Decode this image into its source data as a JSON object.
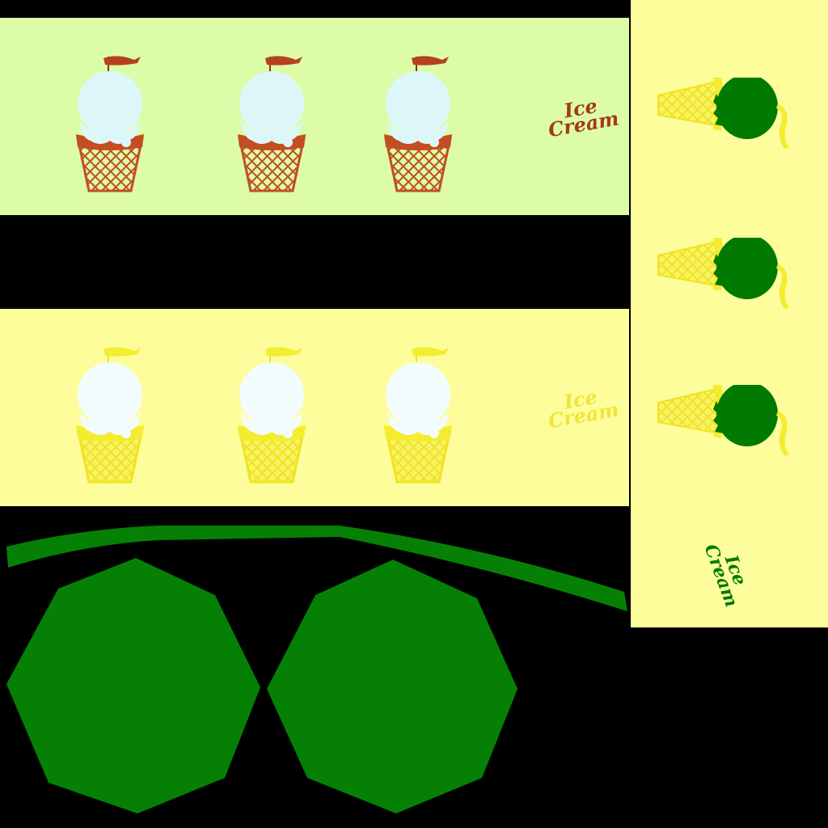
{
  "colors": {
    "background": "#000000",
    "strip_green": "#dcfca8",
    "strip_yellow": "#fdfd9c",
    "scoop_light": "#ddf7f8",
    "cone_brown": "#c24e22",
    "flag_brown": "#b5411e",
    "text_brown": "#a33a17",
    "cone_yellow": "#f4ec2e",
    "text_yellow": "#f0e634",
    "scoop_green": "#007a00",
    "shape_green": "#058005"
  },
  "icons": [
    "ice-cream-cone-icon",
    "pennant-flag-icon"
  ],
  "strips": {
    "top": {
      "label_line1": "Ice",
      "label_line2": "Cream"
    },
    "middle": {
      "label_line1": "Ice",
      "label_line2": "Cream"
    },
    "side": {
      "label_line1": "Ice",
      "label_line2": "Cream"
    }
  }
}
